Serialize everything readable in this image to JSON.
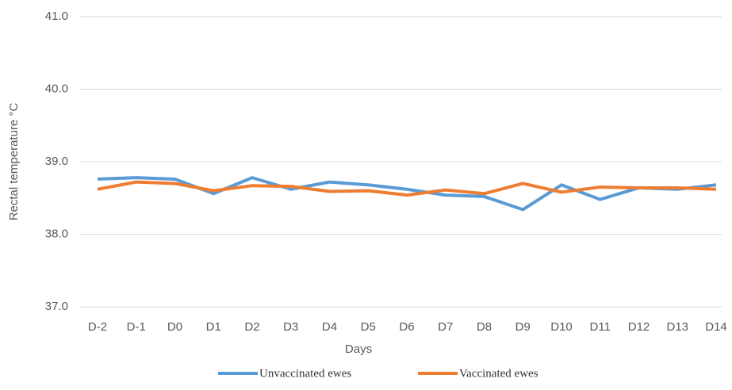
{
  "chart_data": {
    "type": "line",
    "x_label": "Days",
    "y_label": "Rectal temperature °C",
    "categories": [
      "D-2",
      "D-1",
      "D0",
      "D1",
      "D2",
      "D3",
      "D4",
      "D5",
      "D6",
      "D7",
      "D8",
      "D9",
      "D10",
      "D11",
      "D12",
      "D13",
      "D14"
    ],
    "series": [
      {
        "name": "Unvaccinated ewes",
        "color": "#5b9bd5",
        "values": [
          38.76,
          38.78,
          38.76,
          38.56,
          38.78,
          38.62,
          38.72,
          38.68,
          38.62,
          38.54,
          38.52,
          38.34,
          38.68,
          38.48,
          38.64,
          38.62,
          38.68
        ]
      },
      {
        "name": "Vaccinated ewes",
        "color": "#ed7d31",
        "values": [
          38.62,
          38.72,
          38.7,
          38.6,
          38.67,
          38.66,
          38.59,
          38.6,
          38.54,
          38.61,
          38.56,
          38.7,
          38.58,
          38.65,
          38.64,
          38.64,
          38.62
        ]
      }
    ],
    "ylim": [
      37.0,
      41.0
    ],
    "yticks": [
      {
        "value": 37.0,
        "label": "37.0"
      },
      {
        "value": 38.0,
        "label": "38.0"
      },
      {
        "value": 39.0,
        "label": "39.0"
      },
      {
        "value": 40.0,
        "label": "40.0"
      },
      {
        "value": 41.0,
        "label": "41.0"
      }
    ],
    "grid": true,
    "legend": "bottom"
  }
}
